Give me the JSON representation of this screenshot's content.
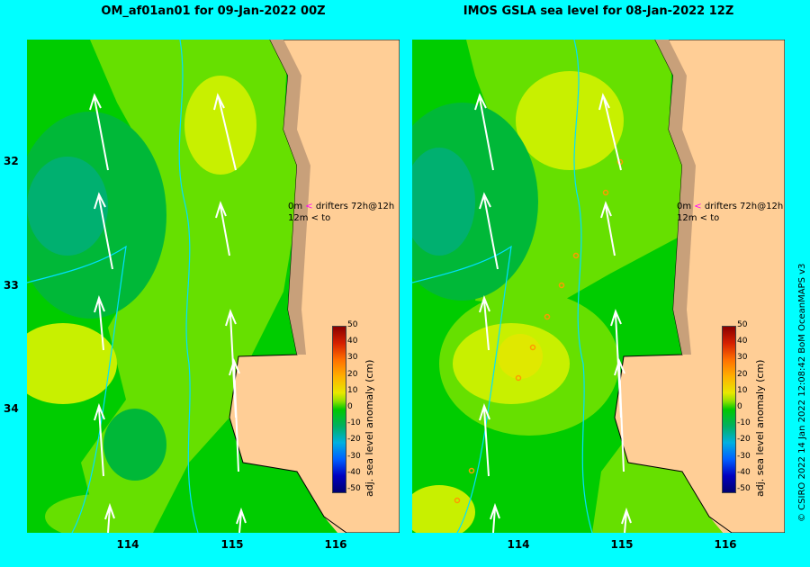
{
  "panels": [
    {
      "title": "OM_af01an01 for 09-Jan-2022 00Z"
    },
    {
      "title": "IMOS GSLA sea level  for 08-Jan-2022 12Z"
    }
  ],
  "axes": {
    "y_ticks": [
      "32",
      "33",
      "34"
    ],
    "x_ticks": [
      "114",
      "115",
      "116"
    ]
  },
  "legend": {
    "row1_depth": "0m",
    "row1_marker": "<",
    "row1_text": "drifters 72h@12h",
    "row2_depth": "12m",
    "row2_marker": "<",
    "row2_text": "to"
  },
  "colorbar": {
    "label": "adj. sea level anomaly (cm)",
    "ticks": [
      "50",
      "40",
      "30",
      "20",
      "10",
      "0",
      "-10",
      "-20",
      "-30",
      "-40",
      "-50"
    ]
  },
  "credit": "© CSIRO 2022   14 Jan 2022 12:08:42 BoM OceanMAPS v3",
  "colors": {
    "background": "#00ffff",
    "land": "#ffce96",
    "coast_shelf": "#c8a07a",
    "green": "#00cc00",
    "light_green": "#66e000",
    "yellow_green": "#c8f000",
    "teal": "#00b070",
    "arrow": "#ffffff"
  }
}
